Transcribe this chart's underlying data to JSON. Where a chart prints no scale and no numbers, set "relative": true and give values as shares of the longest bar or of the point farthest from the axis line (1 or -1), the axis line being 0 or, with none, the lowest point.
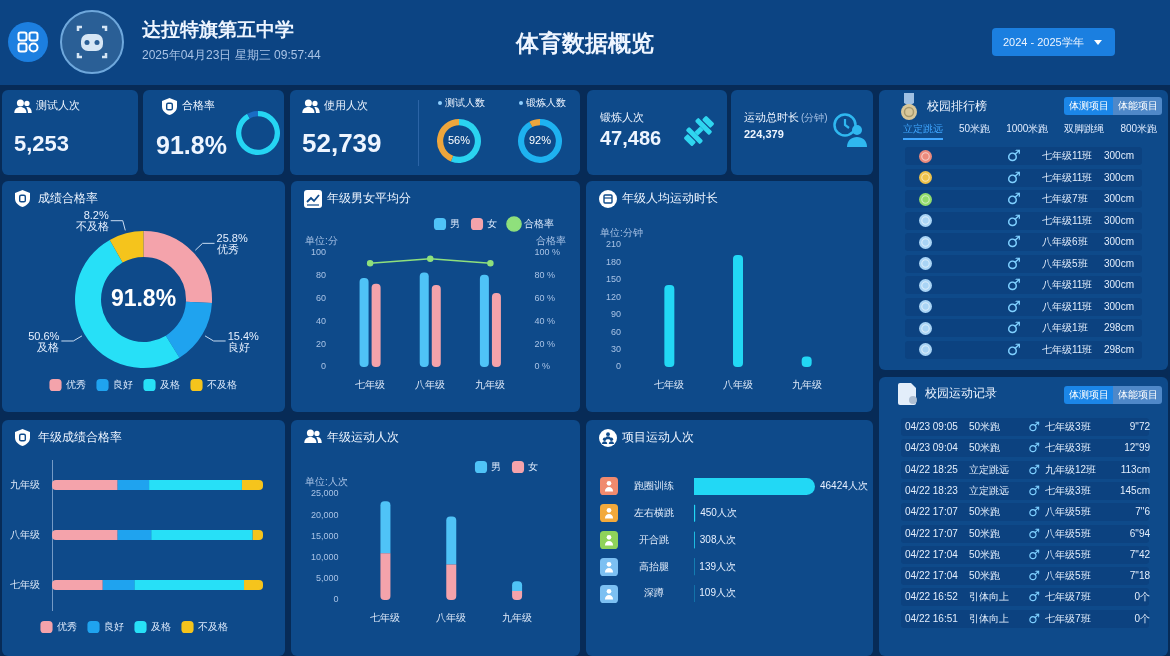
{
  "chart_data": [
    {
      "type": "other",
      "title": "体育数据概览",
      "annotations": [
        "达拉特旗第五中学",
        "2025年04月23日 星期三 09:57:44",
        "2024 - 2025学年"
      ]
    },
    {
      "type": "other",
      "title": "测试人次",
      "annotations": [
        "5,253"
      ]
    },
    {
      "type": "donut",
      "title": "合格率",
      "categories": [
        null,
        null
      ],
      "values": [
        91.8,
        8.2
      ],
      "colors": [
        "#25d5f3",
        "#1a6cc4"
      ],
      "annotations": [
        "91.8%"
      ]
    },
    {
      "type": "other",
      "title": "使用人次",
      "annotations": [
        "52,739"
      ]
    },
    {
      "type": "donut",
      "title": "测试人数",
      "categories": [
        null,
        null
      ],
      "values": [
        56,
        44
      ],
      "colors": [
        "#2ad3f0",
        "#eea63c"
      ],
      "annotations": [
        "56%"
      ]
    },
    {
      "type": "donut",
      "title": "锻炼人数",
      "categories": [
        null,
        null
      ],
      "values": [
        92,
        8
      ],
      "colors": [
        "#1eb2f0",
        "#eea63c"
      ],
      "annotations": [
        "92%"
      ]
    },
    {
      "type": "other",
      "title": "锻炼人次",
      "annotations": [
        "47,486"
      ]
    },
    {
      "type": "other",
      "title": "运动总时长",
      "subtitle": "(分钟)",
      "annotations": [
        "224,379"
      ]
    },
    {
      "type": "other",
      "title": "校园排行榜",
      "annotations": [
        "体测项目",
        "体能项目",
        "立定跳远",
        "50米跑",
        "1000米跑",
        "双脚跳绳",
        "800米跑",
        "♂",
        "七年级11班",
        "300cm",
        "♂",
        "七年级11班",
        "300cm",
        "♂",
        "七年级7班",
        "300cm",
        "♂",
        "七年级11班",
        "300cm",
        "♂",
        "八年级6班",
        "300cm",
        "♂",
        "八年级5班",
        "300cm",
        "♂",
        "八年级11班",
        "300cm",
        "♂",
        "八年级11班",
        "300cm",
        "♂",
        "八年级1班",
        "298cm",
        "♂",
        "七年级11班",
        "298cm"
      ]
    },
    {
      "type": "donut",
      "title": "成绩合格率",
      "categories": [
        "优秀",
        "良好",
        "及格",
        "不及格"
      ],
      "values": [
        25.8,
        15.4,
        50.6,
        8.2
      ],
      "colors": [
        "#f4a3ab",
        "#1fa3ef",
        "#27e0f7",
        "#f5c41c"
      ],
      "value_labels": [
        "25.8%",
        "15.4%",
        "50.6%",
        "8.2%"
      ],
      "legend": "bottom",
      "annotations": [
        "91.8%"
      ]
    },
    {
      "type": "bar",
      "title": "年级男女平均分",
      "categories": [
        "七年级",
        "八年级",
        "九年级"
      ],
      "series": [
        {
          "name": "男",
          "color": "#4fc3f7",
          "values": [
            78,
            83,
            81
          ]
        },
        {
          "name": "女",
          "color": "#f4a3ab",
          "values": [
            73,
            72,
            65
          ]
        },
        {
          "name": "合格率",
          "type": "line",
          "axis": "y2",
          "color": "#8fe07c",
          "values": [
            91,
            95,
            91
          ]
        }
      ],
      "ylim": [
        0,
        100
      ],
      "yticks": [
        0,
        20,
        40,
        60,
        80,
        100
      ],
      "y2lim": [
        0,
        100
      ],
      "y2ticks": [
        {
          "value": 0,
          "label": "0 %"
        },
        {
          "value": 20,
          "label": "20 %"
        },
        {
          "value": 40,
          "label": "40 %"
        },
        {
          "value": 60,
          "label": "60 %"
        },
        {
          "value": 80,
          "label": "80 %"
        },
        {
          "value": 100,
          "label": "100 %"
        }
      ],
      "ylabel": "单位:分",
      "y2label": "合格率",
      "legend": "top right",
      "marker": "circle"
    },
    {
      "type": "bar",
      "title": "年级人均运动时长",
      "categories": [
        "七年级",
        "八年级",
        "九年级"
      ],
      "values": [
        141,
        193,
        18
      ],
      "color": "#22d8f5",
      "ylim": [
        0,
        210
      ],
      "yticks": [
        0,
        30,
        60,
        90,
        120,
        150,
        180,
        210
      ],
      "ylabel": "单位:分钟"
    },
    {
      "type": "other",
      "title": "校园运动记录",
      "annotations": [
        "体测项目",
        "体能项目",
        "04/23 09:05",
        "50米跑",
        "♂",
        "七年级3班",
        "9\"72",
        "04/23 09:04",
        "50米跑",
        "♂",
        "七年级3班",
        "12\"99",
        "04/22 18:25",
        "立定跳远",
        "♂",
        "九年级12班",
        "113cm",
        "04/22 18:23",
        "立定跳远",
        "♂",
        "七年级3班",
        "145cm",
        "04/22 17:07",
        "50米跑",
        "♂",
        "八年级5班",
        "7\"6",
        "04/22 17:07",
        "50米跑",
        "♂",
        "八年级5班",
        "6\"94",
        "04/22 17:04",
        "50米跑",
        "♂",
        "八年级5班",
        "7\"42",
        "04/22 17:04",
        "50米跑",
        "♂",
        "八年级5班",
        "7\"18",
        "04/22 16:52",
        "引体向上",
        "♂",
        "七年级7班",
        "0个",
        "04/22 16:51",
        "引体向上",
        "♂",
        "七年级7班",
        "0个"
      ]
    },
    {
      "type": "bar",
      "title": "年级成绩合格率",
      "orientation": "horizontal",
      "stacked": true,
      "relative": true,
      "categories": [
        "九年级",
        "八年级",
        "七年级"
      ],
      "series": [
        {
          "name": "优秀",
          "color": "#f4a3ab",
          "values": [
            0.31,
            0.31,
            0.24
          ]
        },
        {
          "name": "良好",
          "color": "#1fa3ef",
          "values": [
            0.15,
            0.16,
            0.15
          ]
        },
        {
          "name": "及格",
          "color": "#27e0f7",
          "values": [
            0.44,
            0.48,
            0.52
          ]
        },
        {
          "name": "不及格",
          "color": "#f5c41c",
          "values": [
            0.1,
            0.05,
            0.09
          ]
        }
      ],
      "legend": "bottom"
    },
    {
      "type": "bar",
      "title": "年级运动人次",
      "stacked": true,
      "categories": [
        "七年级",
        "八年级",
        "九年级"
      ],
      "series": [
        {
          "name": "女",
          "color": "#f4a3ab",
          "values": [
            11000,
            8400,
            2100
          ]
        },
        {
          "name": "男",
          "color": "#4fc3f7",
          "values": [
            12300,
            11300,
            2300
          ]
        }
      ],
      "ylim": [
        0,
        25000
      ],
      "yticks": [
        0,
        {
          "value": 5000,
          "label": "5,000"
        },
        {
          "value": 10000,
          "label": "10,000"
        },
        {
          "value": 15000,
          "label": "15,000"
        },
        {
          "value": 20000,
          "label": "20,000"
        },
        {
          "value": 25000,
          "label": "25,000"
        }
      ],
      "ylabel": "单位:人次",
      "legend": "top right"
    },
    {
      "type": "bar",
      "title": "项目运动人次",
      "orientation": "horizontal",
      "categories": [
        "跑圈训练",
        "左右横跳",
        "开合跳",
        "高抬腿",
        "深蹲"
      ],
      "values": [
        46424,
        450,
        308,
        139,
        109
      ],
      "value_labels": [
        "46424人次",
        "450人次",
        "308人次",
        "139人次",
        "109人次"
      ],
      "color": "#22d8f5"
    }
  ]
}
